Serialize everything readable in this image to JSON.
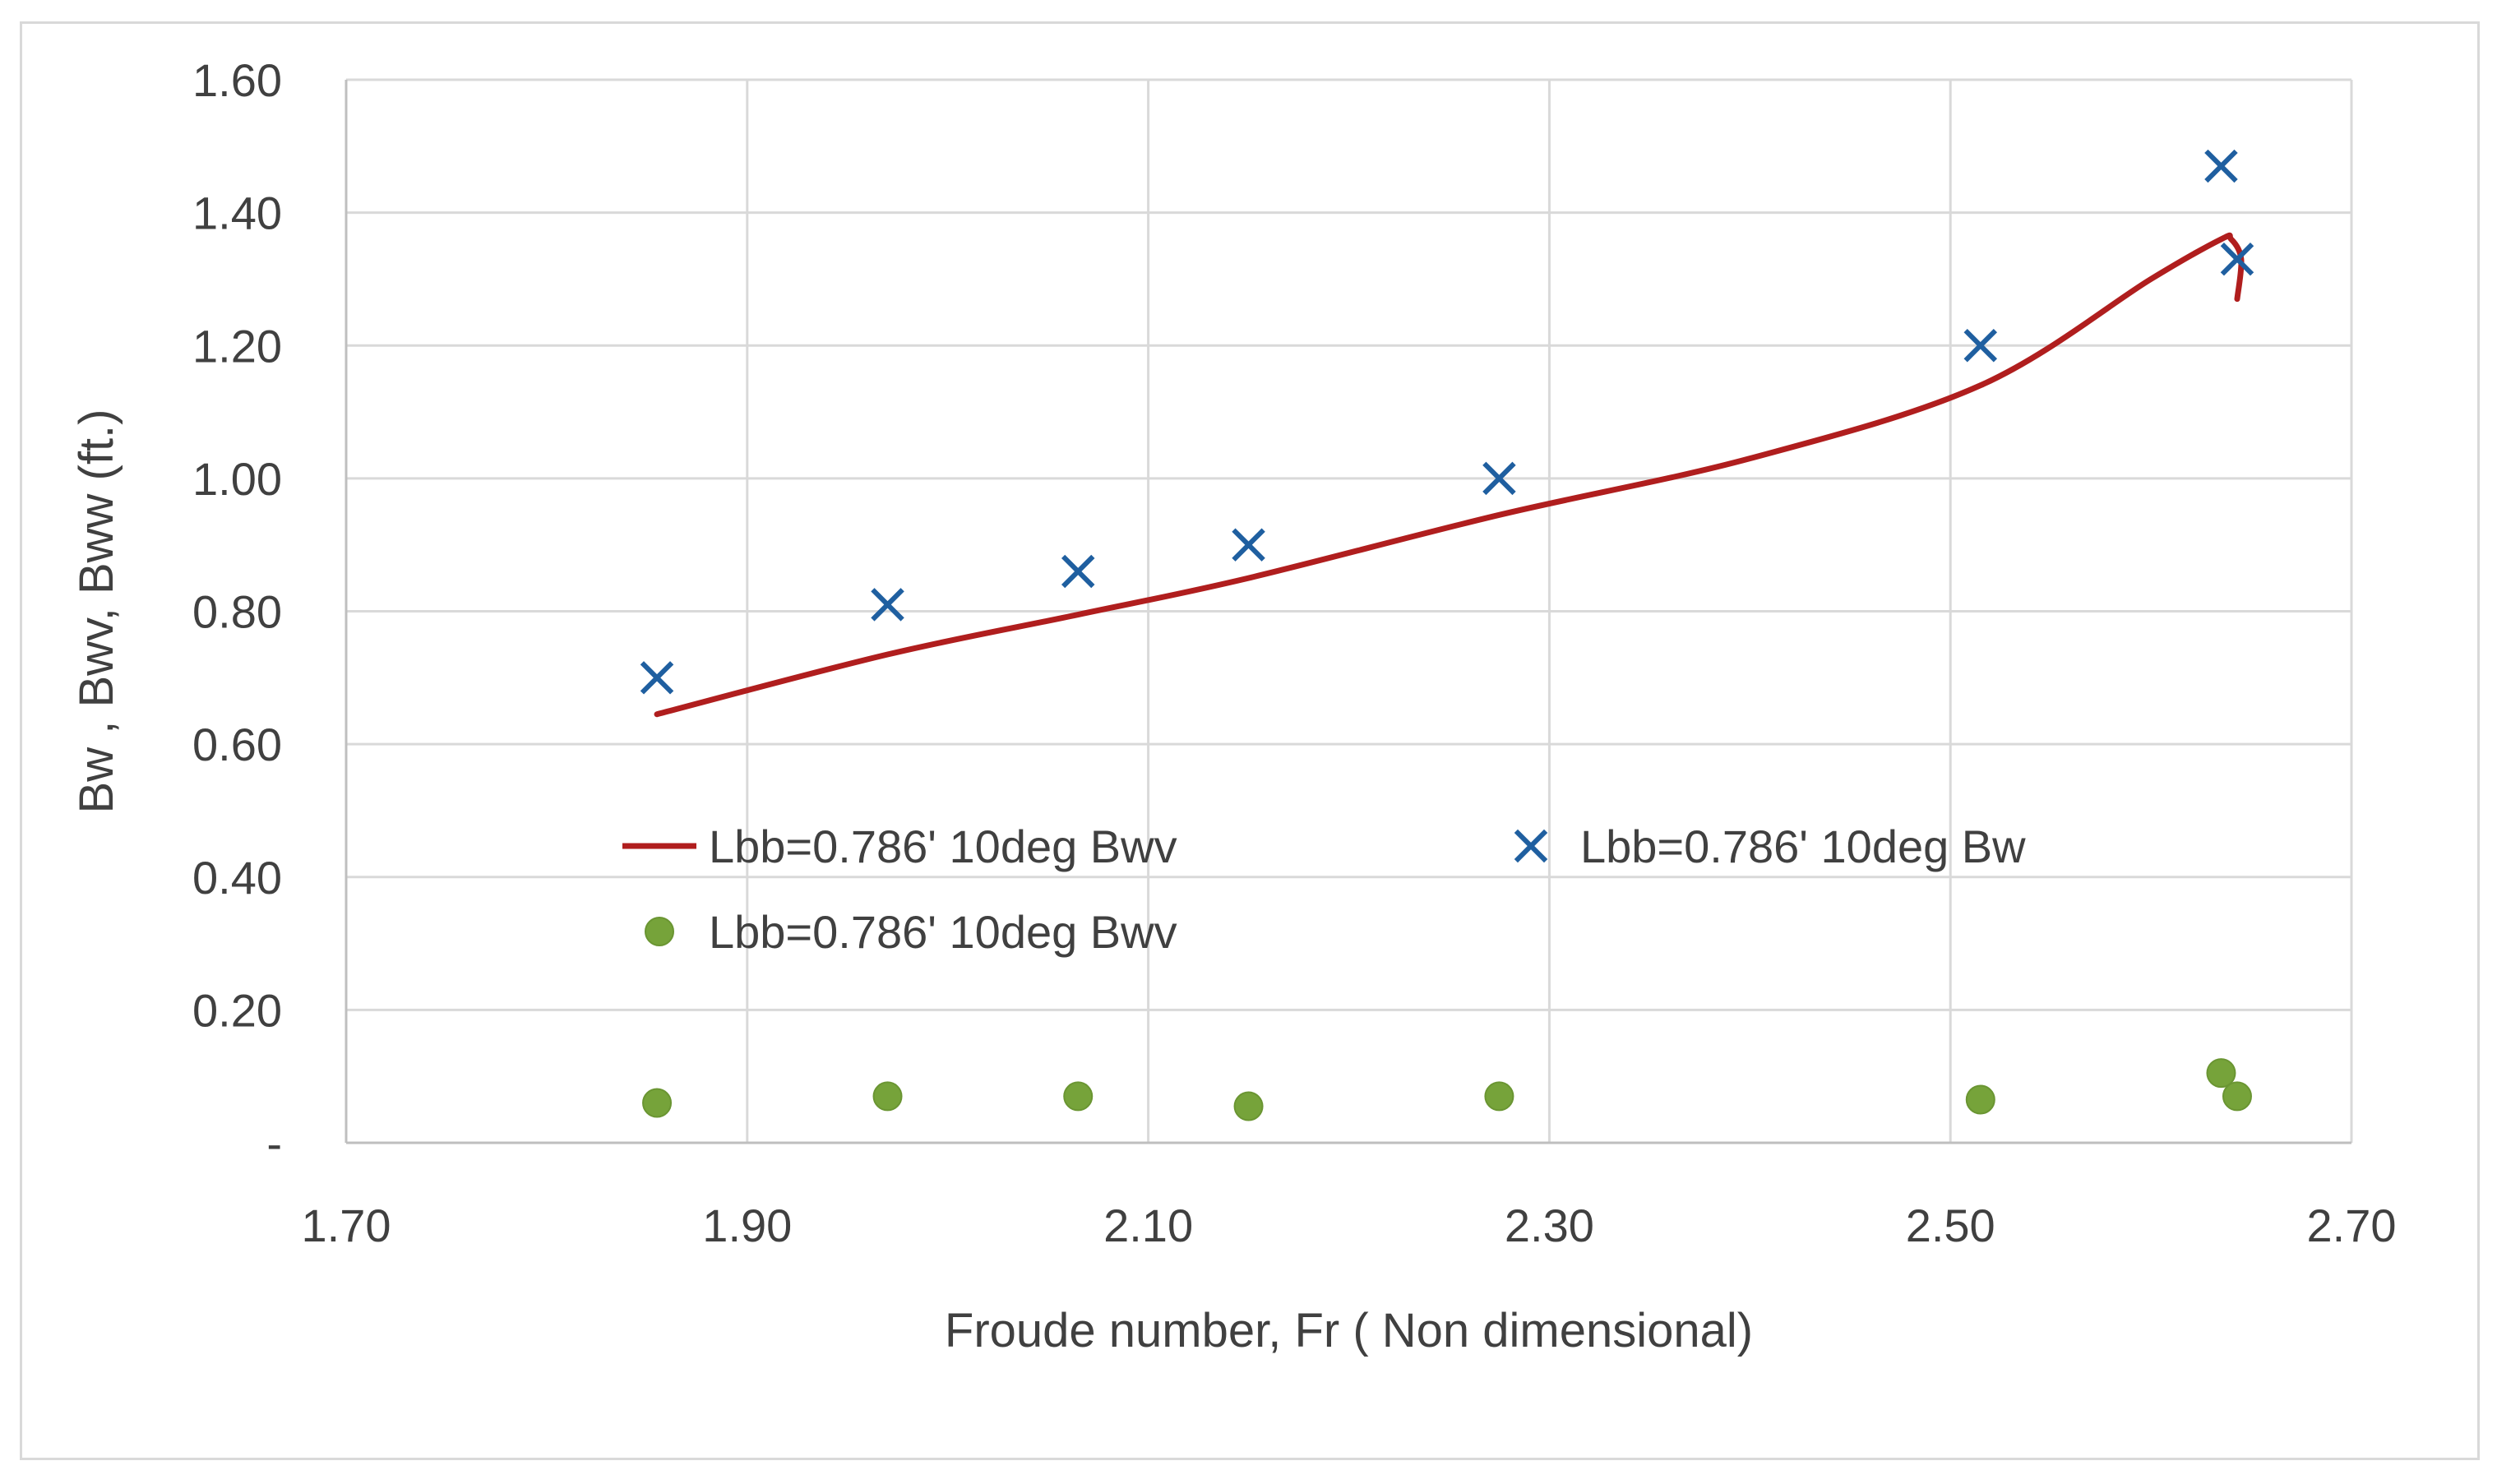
{
  "chart_data": {
    "type": "scatter",
    "title": "",
    "xlabel": "Froude number, Fr ( Non dimensional)",
    "ylabel": "Bw , Bwv, Bww (ft.)",
    "xlim": [
      1.7,
      2.7
    ],
    "ylim": [
      0,
      1.6
    ],
    "x_ticks": [
      "1.70",
      "1.90",
      "2.10",
      "2.30",
      "2.50",
      "2.70"
    ],
    "y_ticks": [
      "-",
      "0.20",
      "0.40",
      "0.60",
      "0.80",
      "1.00",
      "1.20",
      "1.40",
      "1.60"
    ],
    "grid": true,
    "legend_position": "inside-center",
    "series": [
      {
        "name": "Lbb=0.786' 10deg Bwv",
        "kind": "line",
        "color": "#b01e1e",
        "x": [
          1.855,
          1.97,
          2.065,
          2.15,
          2.275,
          2.4,
          2.515,
          2.6,
          2.635,
          2.64,
          2.645,
          2.643
        ],
        "y": [
          0.645,
          0.735,
          0.795,
          0.85,
          0.945,
          1.03,
          1.14,
          1.3,
          1.36,
          1.36,
          1.33,
          1.27
        ]
      },
      {
        "name": "Lbb=0.786' 10deg Bw",
        "kind": "marker-x",
        "color": "#1f5fa0",
        "x": [
          1.855,
          1.97,
          2.065,
          2.15,
          2.275,
          2.515,
          2.635,
          2.643
        ],
        "y": [
          0.7,
          0.81,
          0.86,
          0.9,
          1.0,
          1.2,
          1.47,
          1.33
        ]
      },
      {
        "name": "Lbb=0.786' 10deg Bwv",
        "kind": "marker-dot",
        "color": "#76a33a",
        "x": [
          1.855,
          1.97,
          2.065,
          2.15,
          2.275,
          2.515,
          2.635,
          2.643
        ],
        "y": [
          0.06,
          0.07,
          0.07,
          0.055,
          0.07,
          0.065,
          0.105,
          0.07
        ]
      }
    ],
    "legend": [
      "Lbb=0.786' 10deg Bwv",
      "Lbb=0.786' 10deg Bw",
      "Lbb=0.786' 10deg Bwv"
    ]
  }
}
